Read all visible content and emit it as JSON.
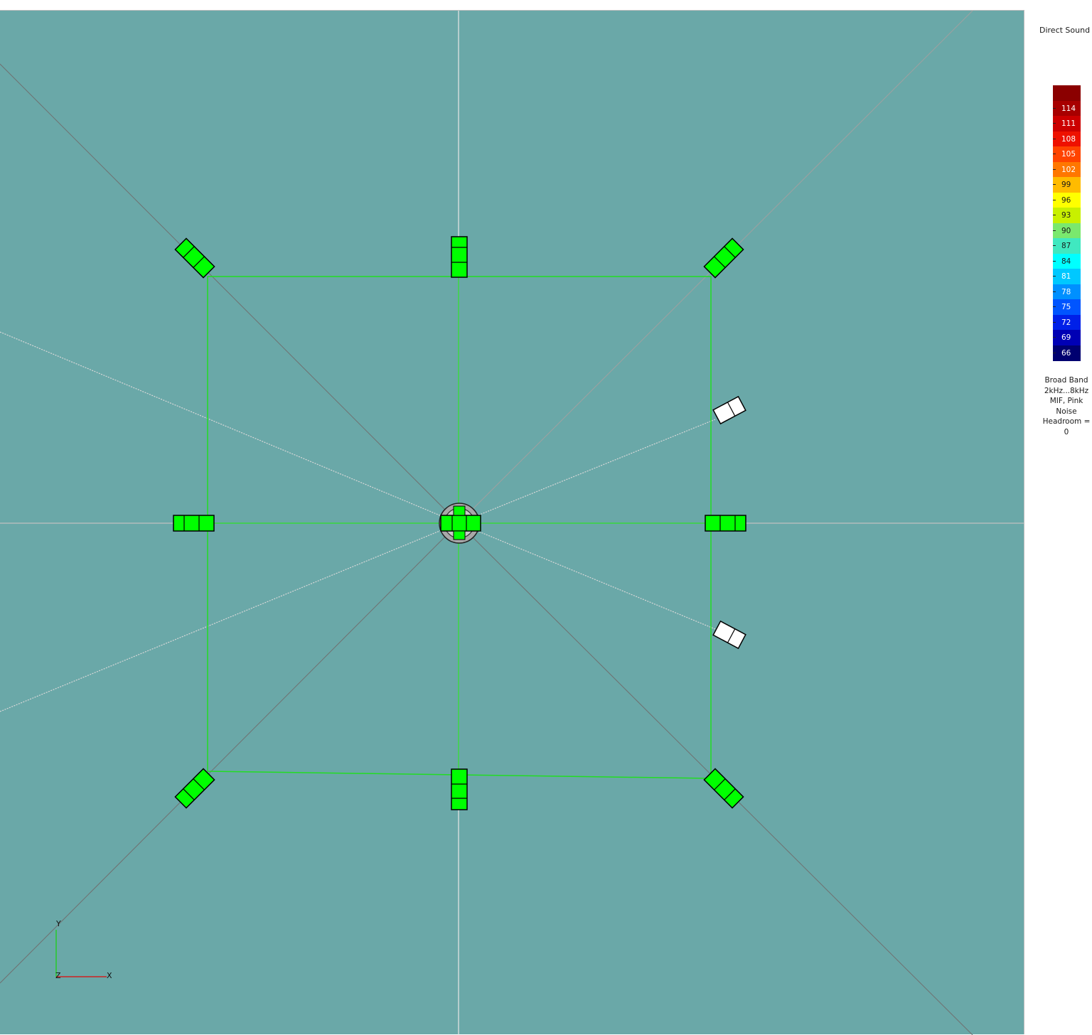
{
  "legend": {
    "title": "Direct Sound",
    "scale": [
      {
        "label": "",
        "color": "#8b0000"
      },
      {
        "label": "114",
        "color": "#a80000"
      },
      {
        "label": "111",
        "color": "#cc0000"
      },
      {
        "label": "108",
        "color": "#ee1100"
      },
      {
        "label": "105",
        "color": "#ff4400"
      },
      {
        "label": "102",
        "color": "#ff7700"
      },
      {
        "label": "99",
        "color": "#ffbb00"
      },
      {
        "label": "96",
        "color": "#ffff00"
      },
      {
        "label": "93",
        "color": "#c8f000"
      },
      {
        "label": "90",
        "color": "#7ae86e"
      },
      {
        "label": "87",
        "color": "#40e8c0"
      },
      {
        "label": "84",
        "color": "#00ffff"
      },
      {
        "label": "81",
        "color": "#00c8ff"
      },
      {
        "label": "78",
        "color": "#0090ff"
      },
      {
        "label": "75",
        "color": "#0055ff"
      },
      {
        "label": "72",
        "color": "#0020e8"
      },
      {
        "label": "69",
        "color": "#0000b4"
      },
      {
        "label": "66",
        "color": "#000070"
      }
    ],
    "notes": [
      "Broad Band",
      "2kHz...8kHz",
      "MIF, Pink",
      "Noise",
      "Headroom =",
      "0"
    ]
  },
  "axes": {
    "y": "Y",
    "z": "Z",
    "x": "X"
  },
  "colors": {
    "background": "#6aa8a8",
    "speaker_active": "#00ff00",
    "speaker_inactive": "#ffffff",
    "array_outline": "#22dd22"
  }
}
